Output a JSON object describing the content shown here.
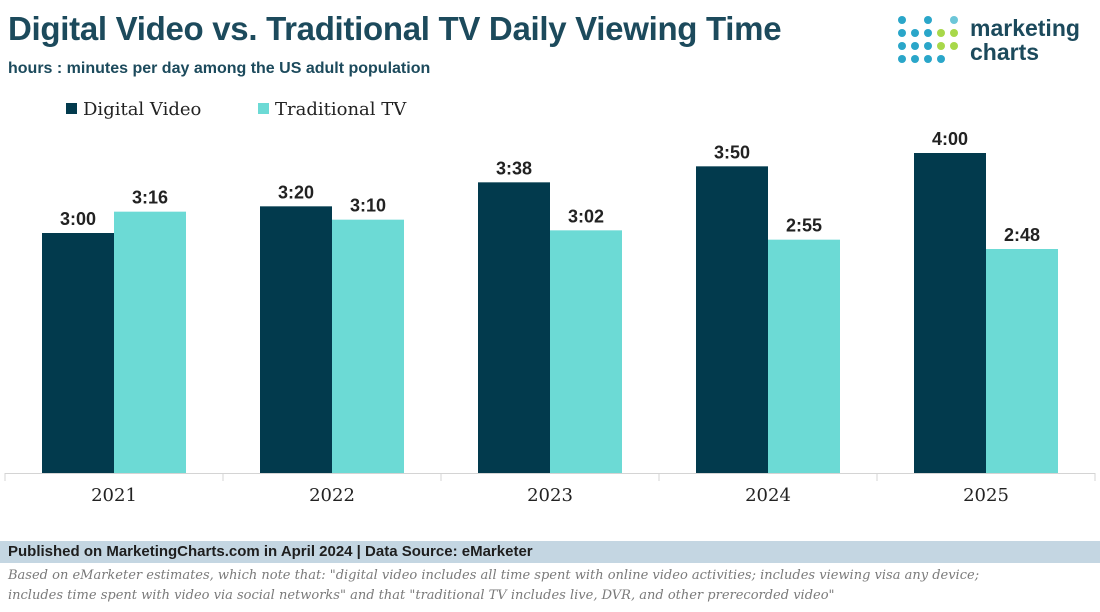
{
  "header": {
    "title": "Digital Video vs. Traditional TV Daily Viewing Time",
    "subtitle": "hours : minutes per day among the US adult population"
  },
  "logo": {
    "line1": "marketing",
    "line2": "charts"
  },
  "footer": {
    "published": "Published on MarketingCharts.com in April 2024 | Data Source: eMarketer",
    "note_line1": "Based on eMarketer estimates, which note that: \"digital video includes all time spent with online video activities; includes viewing visa any device;",
    "note_line2": "includes time spent with video via social networks\" and that \"traditional TV includes live, DVR, and other prerecorded video\""
  },
  "colors": {
    "digital": "#023a4d",
    "traditional": "#6cdad5"
  },
  "chart_data": {
    "type": "bar",
    "title": "Digital Video vs. Traditional TV Daily Viewing Time",
    "ylabel": "hours : minutes per day",
    "unit": "minutes",
    "ylim": [
      0,
      240
    ],
    "categories": [
      "2021",
      "2022",
      "2023",
      "2024",
      "2025"
    ],
    "series": [
      {
        "name": "Digital Video",
        "values": [
          180,
          200,
          218,
          230,
          240
        ],
        "labels": [
          "3:00",
          "3:20",
          "3:38",
          "3:50",
          "4:00"
        ]
      },
      {
        "name": "Traditional TV",
        "values": [
          196,
          190,
          182,
          175,
          168
        ],
        "labels": [
          "3:16",
          "3:10",
          "3:02",
          "2:55",
          "2:48"
        ]
      }
    ],
    "legend": "top-left",
    "grid": false
  }
}
